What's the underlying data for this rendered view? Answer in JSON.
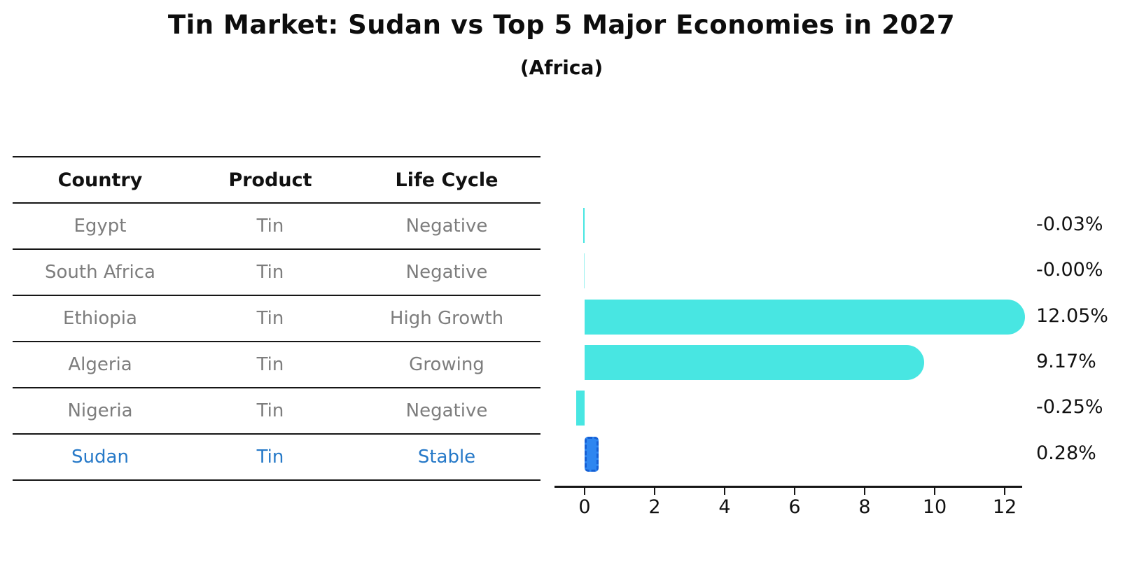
{
  "title": "Tin Market: Sudan vs Top 5 Major Economies in 2027",
  "subtitle": "(Africa)",
  "table": {
    "headers": [
      "Country",
      "Product",
      "Life Cycle"
    ],
    "rows": [
      {
        "country": "Egypt",
        "product": "Tin",
        "life_cycle": "Negative",
        "highlight": false
      },
      {
        "country": "South Africa",
        "product": "Tin",
        "life_cycle": "Negative",
        "highlight": false
      },
      {
        "country": "Ethiopia",
        "product": "Tin",
        "life_cycle": "High Growth",
        "highlight": false
      },
      {
        "country": "Algeria",
        "product": "Tin",
        "life_cycle": "Growing",
        "highlight": false
      },
      {
        "country": "Nigeria",
        "product": "Tin",
        "life_cycle": "Negative",
        "highlight": false
      },
      {
        "country": "Sudan",
        "product": "Tin",
        "life_cycle": "Stable",
        "highlight": true
      }
    ]
  },
  "chart_data": {
    "type": "bar",
    "orientation": "horizontal",
    "title": "Tin Market: Sudan vs Top 5 Major Economies in 2027",
    "subtitle": "(Africa)",
    "categories": [
      "Egypt",
      "South Africa",
      "Ethiopia",
      "Algeria",
      "Nigeria",
      "Sudan"
    ],
    "values": [
      -0.03,
      -0.0,
      12.05,
      9.17,
      -0.25,
      0.28
    ],
    "value_labels": [
      "-0.03%",
      "-0.00%",
      "12.05%",
      "9.17%",
      "-0.25%",
      "0.28%"
    ],
    "unit": "%",
    "x_ticks": [
      0,
      2,
      4,
      6,
      8,
      10,
      12
    ],
    "xlim": [
      -0.86,
      12.5
    ],
    "grid": false,
    "legend": false,
    "bar_color": "#48e6e2",
    "highlight_color": "#2e86f0",
    "highlight_index": 5,
    "highlight_style": "dashed"
  },
  "colors": {
    "text_primary": "#111111",
    "text_muted": "#7d7d7d",
    "highlight_text": "#2679c8",
    "bar": "#48e6e2",
    "highlight_bar": "#2e86f0",
    "axis": "#161616"
  }
}
